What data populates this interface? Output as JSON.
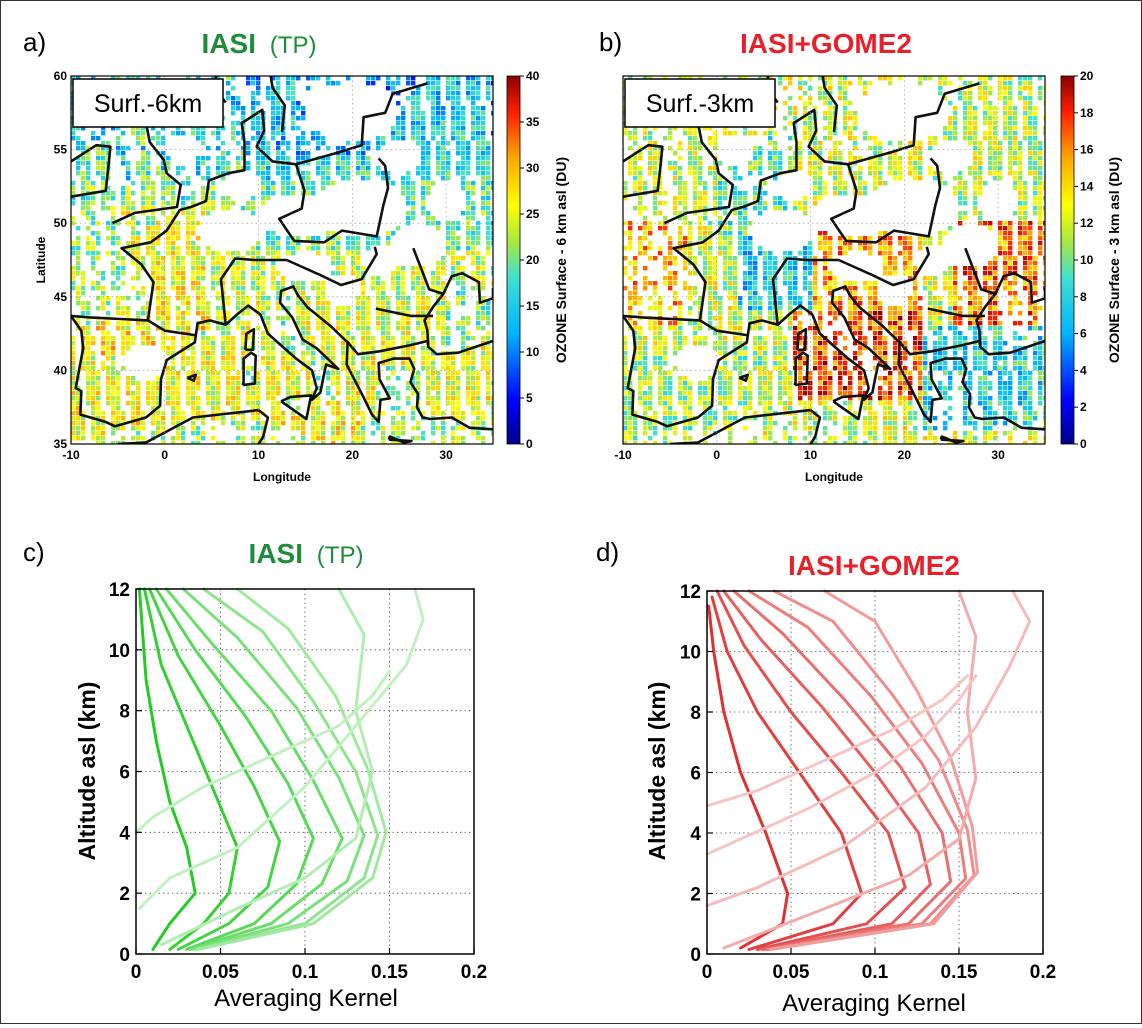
{
  "panels": {
    "a": {
      "letter": "a)",
      "title_main": "IASI",
      "title_sub": "(TP)",
      "title_color": "#1e8c3a",
      "layer_label": "Surf.-6km",
      "xlabel": "Longitude",
      "ylabel": "Latitude",
      "colorbar_label": "OZONE Surface - 6 km asl (DU)"
    },
    "b": {
      "letter": "b)",
      "title_main": "IASI+GOME2",
      "title_color": "#e8202a",
      "layer_label": "Surf.-3km",
      "xlabel": "Longitude",
      "colorbar_label": "OZONE Surface - 3 km asl (DU)"
    },
    "c": {
      "letter": "c)",
      "title_main": "IASI",
      "title_sub": "(TP)",
      "title_color": "#1e8c3a",
      "xlabel": "Averaging Kernel",
      "ylabel": "Altitude asl (km)"
    },
    "d": {
      "letter": "d)",
      "title_main": "IASI+GOME2",
      "title_color": "#e8202a",
      "xlabel": "Averaging Kernel",
      "ylabel": "Altitude asl (km)"
    }
  },
  "chart_data": [
    {
      "type": "heatmap",
      "panel": "a",
      "xlabel": "Longitude",
      "ylabel": "Latitude",
      "xlim": [
        -10,
        35
      ],
      "ylim": [
        35,
        60
      ],
      "xticks": [
        -10,
        0,
        10,
        20,
        30
      ],
      "yticks": [
        35,
        40,
        45,
        50,
        55,
        60
      ],
      "colorbar": {
        "label": "OZONE Surface - 6 km asl (DU)",
        "range": [
          0,
          40
        ],
        "ticks": [
          0,
          5,
          10,
          15,
          20,
          25,
          30,
          35,
          40
        ]
      },
      "grid": true
    },
    {
      "type": "heatmap",
      "panel": "b",
      "xlabel": "Longitude",
      "xlim": [
        -10,
        35
      ],
      "ylim": [
        35,
        60
      ],
      "xticks": [
        -10,
        0,
        10,
        20,
        30
      ],
      "colorbar": {
        "label": "OZONE Surface - 3 km asl (DU)",
        "range": [
          0,
          20
        ],
        "ticks": [
          0,
          2,
          4,
          6,
          8,
          10,
          12,
          14,
          16,
          18,
          20
        ]
      },
      "grid": true
    },
    {
      "type": "line",
      "panel": "c",
      "xlabel": "Averaging Kernel",
      "ylabel": "Altitude asl (km)",
      "xlim": [
        0,
        0.2
      ],
      "ylim": [
        0,
        12
      ],
      "xticks": [
        0,
        0.05,
        0.1,
        0.15,
        0.2
      ],
      "xticklabels": [
        "0",
        "0.05",
        "0.1",
        "0.15",
        "0.2"
      ],
      "yticks": [
        0,
        2,
        4,
        6,
        8,
        10,
        12
      ],
      "grid": true,
      "color": "#22cc22",
      "series": [
        {
          "x": [
            0.01,
            0.02,
            0.035,
            0.03,
            0.02,
            0.012,
            0.006,
            0.002
          ],
          "y": [
            0.15,
            1,
            2,
            3.5,
            5,
            7,
            9,
            12
          ]
        },
        {
          "x": [
            0.02,
            0.04,
            0.055,
            0.06,
            0.045,
            0.03,
            0.015,
            0.005
          ],
          "y": [
            0.15,
            1,
            2,
            3.5,
            5.5,
            7.5,
            9.5,
            12
          ]
        },
        {
          "x": [
            0.025,
            0.055,
            0.078,
            0.085,
            0.07,
            0.05,
            0.025,
            0.008
          ],
          "y": [
            0.15,
            1,
            2.2,
            3.7,
            5.5,
            7.5,
            9.8,
            12
          ]
        },
        {
          "x": [
            0.03,
            0.07,
            0.095,
            0.105,
            0.09,
            0.065,
            0.035,
            0.012
          ],
          "y": [
            0.15,
            1,
            2.3,
            3.8,
            5.6,
            7.8,
            10,
            12
          ]
        },
        {
          "x": [
            0.032,
            0.08,
            0.11,
            0.122,
            0.105,
            0.08,
            0.045,
            0.018
          ],
          "y": [
            0.15,
            1,
            2.3,
            3.8,
            5.7,
            8,
            10.2,
            12
          ]
        },
        {
          "x": [
            0.034,
            0.09,
            0.125,
            0.135,
            0.12,
            0.095,
            0.06,
            0.028
          ],
          "y": [
            0.15,
            1,
            2.4,
            3.9,
            5.8,
            8.1,
            10.4,
            12
          ]
        },
        {
          "x": [
            0.036,
            0.1,
            0.135,
            0.143,
            0.13,
            0.105,
            0.075,
            0.04
          ],
          "y": [
            0.15,
            1,
            2.5,
            3.9,
            6,
            8.3,
            10.6,
            12
          ]
        },
        {
          "x": [
            0.037,
            0.105,
            0.14,
            0.148,
            0.137,
            0.118,
            0.09,
            0.06
          ],
          "y": [
            0.15,
            1,
            2.5,
            4,
            6.1,
            8.5,
            10.7,
            12
          ]
        },
        {
          "x": [
            0.015,
            0.06,
            0.1,
            0.13,
            0.14,
            0.13,
            0.135,
            0.12
          ],
          "y": [
            0.3,
            1.5,
            2.5,
            3.8,
            6,
            8,
            10.5,
            12
          ]
        },
        {
          "x": [
            0.002,
            0.02,
            0.06,
            0.1,
            0.13,
            0.16,
            0.17,
            0.165
          ],
          "y": [
            1.5,
            2.5,
            3.5,
            5.5,
            7.5,
            9.5,
            11,
            12
          ]
        },
        {
          "x": [
            0,
            0.01,
            0.04,
            0.08,
            0.12,
            0.14,
            0.15
          ],
          "y": [
            4,
            4.5,
            5.5,
            6.5,
            7.5,
            8.5,
            9.3
          ]
        }
      ]
    },
    {
      "type": "line",
      "panel": "d",
      "xlabel": "Averaging Kernel",
      "ylabel": "Altitude asl (km)",
      "xlim": [
        0,
        0.2
      ],
      "ylim": [
        0,
        12
      ],
      "xticks": [
        0,
        0.05,
        0.1,
        0.15,
        0.2
      ],
      "xticklabels": [
        "0",
        "0.05",
        "0.1",
        "0.15",
        "0.2"
      ],
      "yticks": [
        0,
        2,
        4,
        6,
        8,
        10,
        12
      ],
      "grid": true,
      "color": "#e03030",
      "series": [
        {
          "x": [
            0.02,
            0.045,
            0.048,
            0.035,
            0.02,
            0.01,
            0.004,
            0.001
          ],
          "y": [
            0.2,
            1,
            2,
            4,
            6,
            8,
            10,
            11.5
          ]
        },
        {
          "x": [
            0.025,
            0.075,
            0.092,
            0.08,
            0.055,
            0.03,
            0.012,
            0.003
          ],
          "y": [
            0.15,
            1,
            2,
            4,
            6,
            8,
            10,
            11.8
          ]
        },
        {
          "x": [
            0.03,
            0.095,
            0.118,
            0.108,
            0.08,
            0.05,
            0.022,
            0.006
          ],
          "y": [
            0.15,
            1,
            2.2,
            4,
            6,
            8,
            10.2,
            12
          ]
        },
        {
          "x": [
            0.033,
            0.11,
            0.133,
            0.126,
            0.1,
            0.068,
            0.032,
            0.01
          ],
          "y": [
            0.15,
            1,
            2.3,
            4,
            6,
            8.2,
            10.4,
            12
          ]
        },
        {
          "x": [
            0.035,
            0.12,
            0.145,
            0.14,
            0.115,
            0.082,
            0.045,
            0.016
          ],
          "y": [
            0.15,
            1,
            2.4,
            4,
            6.2,
            8.4,
            10.6,
            12
          ]
        },
        {
          "x": [
            0.036,
            0.128,
            0.154,
            0.15,
            0.128,
            0.098,
            0.06,
            0.025
          ],
          "y": [
            0.15,
            1,
            2.5,
            4,
            6.3,
            8.5,
            10.8,
            12
          ]
        },
        {
          "x": [
            0.037,
            0.133,
            0.159,
            0.155,
            0.138,
            0.11,
            0.075,
            0.04
          ],
          "y": [
            0.15,
            1,
            2.6,
            4.1,
            6.4,
            8.6,
            11,
            12
          ]
        },
        {
          "x": [
            0.038,
            0.135,
            0.161,
            0.158,
            0.145,
            0.125,
            0.1,
            0.07
          ],
          "y": [
            0.15,
            1,
            2.7,
            4.2,
            6.5,
            8.7,
            11,
            12
          ]
        },
        {
          "x": [
            0.01,
            0.07,
            0.12,
            0.15,
            0.16,
            0.155,
            0.16,
            0.15
          ],
          "y": [
            0.2,
            1.5,
            2.6,
            3.8,
            5.8,
            8,
            10.5,
            12
          ]
        },
        {
          "x": [
            0,
            0.03,
            0.08,
            0.13,
            0.16,
            0.18,
            0.192,
            0.182
          ],
          "y": [
            1.6,
            2.2,
            3.5,
            5.5,
            7.5,
            9.5,
            11,
            12
          ]
        },
        {
          "x": [
            0,
            0.02,
            0.06,
            0.1,
            0.13,
            0.15,
            0.16
          ],
          "y": [
            3.3,
            3.8,
            4.8,
            6,
            7.2,
            8.4,
            9.2
          ]
        },
        {
          "x": [
            0,
            0.03,
            0.07,
            0.11,
            0.14,
            0.155
          ],
          "y": [
            4.9,
            5.4,
            6.4,
            7.4,
            8.4,
            9.2
          ]
        }
      ]
    }
  ]
}
